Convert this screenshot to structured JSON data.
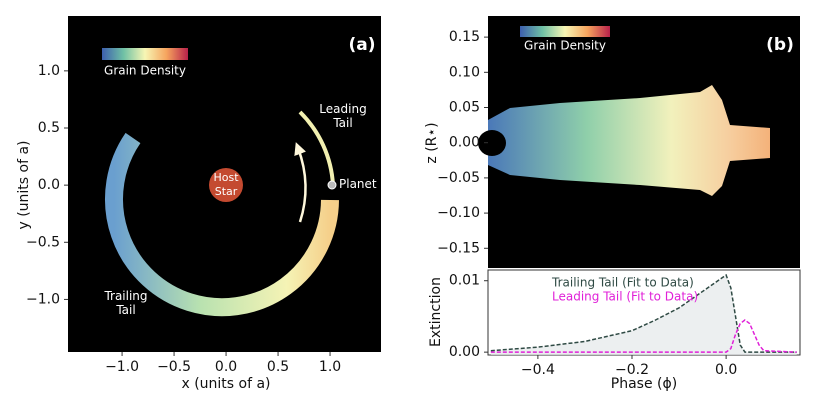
{
  "chart_data": [
    {
      "type": "density",
      "label": "(a)",
      "colorbar_label": "Grain Density",
      "annotations": [
        "Host Star",
        "Planet",
        "Leading Tail",
        "Trailing Tail"
      ],
      "xlabel": "x (units of a)",
      "ylabel": "y (units of a)",
      "xlim": [
        -1.52,
        1.49
      ],
      "ylim": [
        -1.46,
        1.48
      ],
      "xticks": [
        {
          "value": -1,
          "label": "−1.0"
        },
        {
          "value": -0.5,
          "label": "−0.5"
        },
        {
          "value": 0,
          "label": "0.0"
        },
        0.5,
        {
          "value": 1,
          "label": "1.0"
        }
      ],
      "yticks": [
        {
          "value": -1,
          "label": "−1.0"
        },
        {
          "value": -0.5,
          "label": "−0.5"
        },
        {
          "value": 0,
          "label": "0.0"
        },
        0.5,
        {
          "value": 1,
          "label": "1.0"
        }
      ]
    },
    {
      "type": "density",
      "label": "(b)",
      "colorbar_label": "Grain Density",
      "ylabel": "z (R⋆)",
      "xlim": [
        -0.506,
        0.157
      ],
      "ylim": [
        -0.178,
        0.18
      ],
      "yticks": [
        {
          "value": -0.15,
          "label": "−0.15"
        },
        {
          "value": -0.1,
          "label": "−0.10"
        },
        {
          "value": -0.05,
          "label": "−0.05"
        },
        {
          "value": 0,
          "label": "0.00"
        },
        0.05,
        {
          "value": 0.1,
          "label": "0.10"
        },
        0.15
      ]
    },
    {
      "type": "line",
      "xlabel": "Phase (ϕ)",
      "ylabel": "Extinction",
      "xlim": [
        -0.506,
        0.157
      ],
      "ylim": [
        -0.0004,
        0.0115
      ],
      "xticks": [
        {
          "value": -0.4,
          "label": "−0.4"
        },
        {
          "value": -0.2,
          "label": "−0.2"
        },
        {
          "value": 0,
          "label": "0.0"
        }
      ],
      "yticks": [
        {
          "value": 0,
          "label": "0.00"
        },
        0.01
      ],
      "x": [
        -0.5,
        -0.4,
        -0.3,
        -0.2,
        -0.15,
        -0.1,
        -0.05,
        0,
        0.01,
        0.02,
        0.03,
        0.04,
        0.05,
        0.06,
        0.07,
        0.08,
        0.15
      ],
      "series": [
        {
          "name": "Trailing Tail (Fit to Data)",
          "color": "#2f4a44",
          "values": [
            0.0002,
            0.0007,
            0.0015,
            0.003,
            0.0045,
            0.0062,
            0.0085,
            0.0108,
            0.009,
            0.005,
            0.001,
            0,
            0,
            0,
            0,
            0,
            0
          ]
        },
        {
          "name": "Leading Tail (Fit to Data)",
          "color": "#e020d8",
          "values": [
            0,
            0,
            0,
            0,
            0,
            0,
            0,
            0,
            0.0005,
            0.0025,
            0.004,
            0.0045,
            0.004,
            0.0025,
            0.001,
            0.0002,
            0
          ]
        }
      ]
    }
  ]
}
